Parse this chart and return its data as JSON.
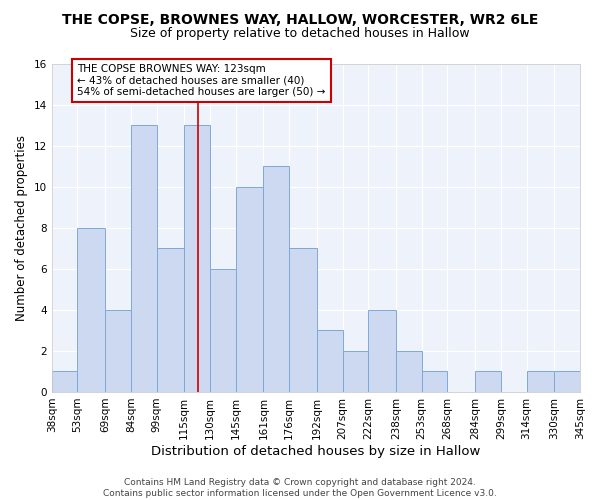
{
  "title1": "THE COPSE, BROWNES WAY, HALLOW, WORCESTER, WR2 6LE",
  "title2": "Size of property relative to detached houses in Hallow",
  "xlabel": "Distribution of detached houses by size in Hallow",
  "ylabel": "Number of detached properties",
  "bin_labels": [
    "38sqm",
    "53sqm",
    "69sqm",
    "84sqm",
    "99sqm",
    "115sqm",
    "130sqm",
    "145sqm",
    "161sqm",
    "176sqm",
    "192sqm",
    "207sqm",
    "222sqm",
    "238sqm",
    "253sqm",
    "268sqm",
    "284sqm",
    "299sqm",
    "314sqm",
    "330sqm",
    "345sqm"
  ],
  "bin_edges": [
    38,
    53,
    69,
    84,
    99,
    115,
    130,
    145,
    161,
    176,
    192,
    207,
    222,
    238,
    253,
    268,
    284,
    299,
    314,
    330,
    345
  ],
  "counts": [
    1,
    8,
    4,
    13,
    7,
    13,
    6,
    10,
    11,
    7,
    3,
    2,
    4,
    2,
    1,
    0,
    1,
    0,
    1,
    1
  ],
  "bar_color": "#ccd9f0",
  "bar_edge_color": "#7da8d8",
  "vline_x": 123,
  "vline_color": "#cc0000",
  "annotation_text": "THE COPSE BROWNES WAY: 123sqm\n← 43% of detached houses are smaller (40)\n54% of semi-detached houses are larger (50) →",
  "annotation_box_color": "white",
  "annotation_box_edge_color": "#cc0000",
  "ylim": [
    0,
    16
  ],
  "yticks": [
    0,
    2,
    4,
    6,
    8,
    10,
    12,
    14,
    16
  ],
  "footer_text": "Contains HM Land Registry data © Crown copyright and database right 2024.\nContains public sector information licensed under the Open Government Licence v3.0.",
  "background_color": "#ffffff",
  "plot_background_color": "#eef2fa",
  "grid_color": "#ffffff",
  "title1_fontsize": 10,
  "title2_fontsize": 9,
  "xlabel_fontsize": 9.5,
  "ylabel_fontsize": 8.5,
  "tick_fontsize": 7.5,
  "annotation_fontsize": 7.5,
  "footer_fontsize": 6.5
}
